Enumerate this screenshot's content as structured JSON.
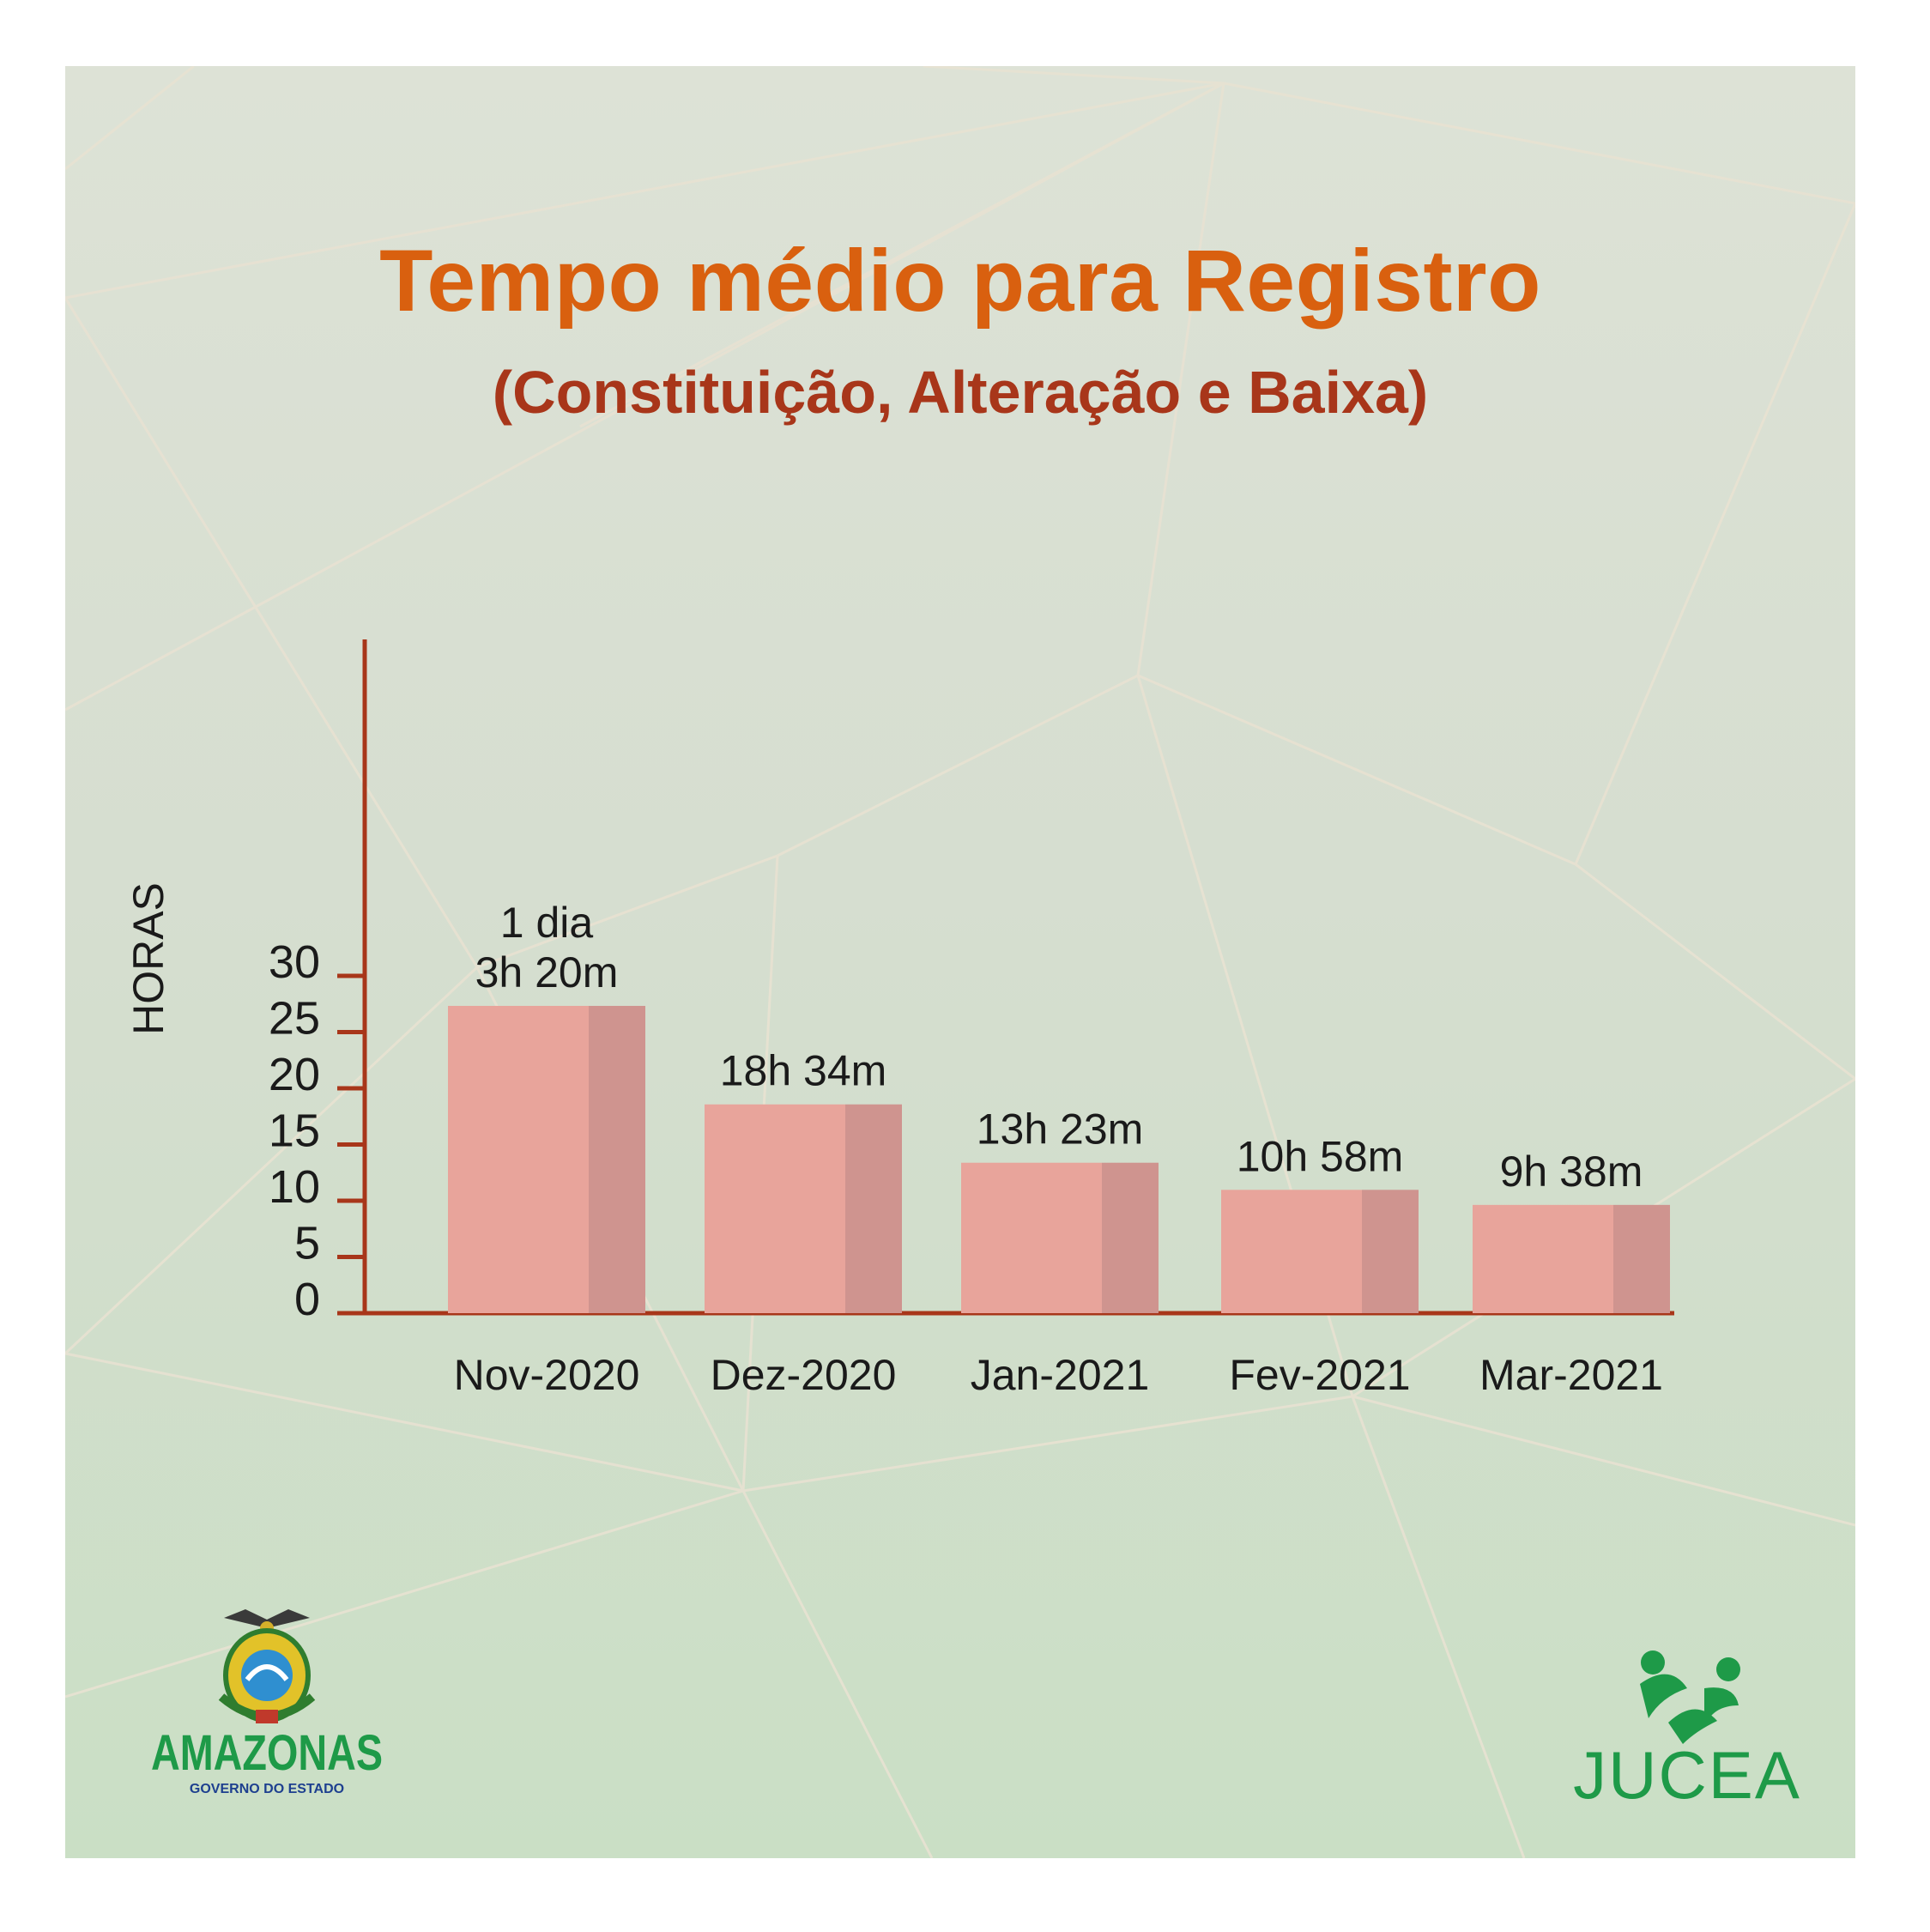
{
  "chart_data": {
    "type": "bar",
    "title": "Tempo médio para Registro",
    "subtitle": "(Constituição, Alteração e Baixa)",
    "ylabel": "HORAS",
    "xlabel": "",
    "ylim": [
      0,
      30
    ],
    "yticks": [
      0,
      5,
      10,
      15,
      20,
      25,
      30
    ],
    "categories": [
      "Nov-2020",
      "Dez-2020",
      "Jan-2021",
      "Fev-2021",
      "Mar-2021"
    ],
    "values": [
      27.33,
      18.57,
      13.38,
      10.97,
      9.63
    ],
    "value_labels": [
      [
        "1 dia",
        "3h 20m"
      ],
      [
        "18h 34m"
      ],
      [
        "13h 23m"
      ],
      [
        "10h 58m"
      ],
      [
        "9h 38m"
      ]
    ],
    "grid": false,
    "legend": "none",
    "colors": {
      "bar_front": "#e8a49b",
      "bar_side": "#cf948f",
      "axis": "#a8361a"
    }
  },
  "colors": {
    "title": "#d9600f",
    "subtitle": "#a8361a",
    "green": "#1e9a48"
  },
  "logos": {
    "amazonas_name": "AMAZONAS",
    "amazonas_sub": "GOVERNO DO ESTADO",
    "jucea_name": "JUCEA"
  }
}
